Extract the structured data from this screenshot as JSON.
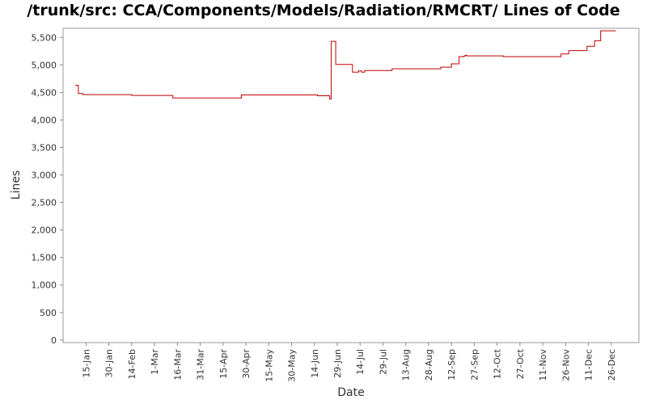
{
  "chart_data": {
    "type": "line",
    "title": "/trunk/src: CCA/Components/Models/Radiation/RMCRT/ Lines of Code",
    "xlabel": "Date",
    "ylabel": "Lines",
    "ylim": [
      0,
      5750
    ],
    "yticks": [
      0,
      500,
      1000,
      1500,
      2000,
      2500,
      3000,
      3500,
      4000,
      4500,
      5000,
      5500
    ],
    "ytick_labels": [
      "0",
      "500",
      "1,000",
      "1,500",
      "2,000",
      "2,500",
      "3,000",
      "3,500",
      "4,000",
      "4,500",
      "5,000",
      "5,500"
    ],
    "xlim_days": [
      0,
      375
    ],
    "xticks": [
      {
        "label": "15-Jan",
        "day": 14
      },
      {
        "label": "30-Jan",
        "day": 29
      },
      {
        "label": "14-Feb",
        "day": 44
      },
      {
        "label": "1-Mar",
        "day": 59
      },
      {
        "label": "16-Mar",
        "day": 74
      },
      {
        "label": "31-Mar",
        "day": 89
      },
      {
        "label": "15-Apr",
        "day": 104
      },
      {
        "label": "30-Apr",
        "day": 119
      },
      {
        "label": "15-May",
        "day": 134
      },
      {
        "label": "30-May",
        "day": 149
      },
      {
        "label": "14-Jun",
        "day": 164
      },
      {
        "label": "29-Jun",
        "day": 179
      },
      {
        "label": "14-Jul",
        "day": 194
      },
      {
        "label": "29-Jul",
        "day": 209
      },
      {
        "label": "13-Aug",
        "day": 224
      },
      {
        "label": "28-Aug",
        "day": 239
      },
      {
        "label": "12-Sep",
        "day": 254
      },
      {
        "label": "27-Sep",
        "day": 269
      },
      {
        "label": "12-Oct",
        "day": 284
      },
      {
        "label": "27-Oct",
        "day": 299
      },
      {
        "label": "11-Nov",
        "day": 314
      },
      {
        "label": "26-Nov",
        "day": 329
      },
      {
        "label": "11-Dec",
        "day": 344
      },
      {
        "label": "26-Dec",
        "day": 359
      }
    ],
    "series": [
      {
        "color": "#c00000",
        "step": true,
        "points": [
          [
            7,
            4630
          ],
          [
            9,
            4480
          ],
          [
            12,
            4460
          ],
          [
            44,
            4445
          ],
          [
            71,
            4400
          ],
          [
            116,
            4455
          ],
          [
            166,
            4440
          ],
          [
            174,
            4380
          ],
          [
            175,
            5430
          ],
          [
            178,
            5010
          ],
          [
            189,
            4870
          ],
          [
            193,
            4890
          ],
          [
            195,
            4870
          ],
          [
            197,
            4900
          ],
          [
            215,
            4930
          ],
          [
            247,
            4960
          ],
          [
            254,
            5020
          ],
          [
            259,
            5150
          ],
          [
            262,
            5160
          ],
          [
            263,
            5175
          ],
          [
            264,
            5165
          ],
          [
            288,
            5150
          ],
          [
            326,
            5200
          ],
          [
            331,
            5260
          ],
          [
            343,
            5340
          ],
          [
            348,
            5440
          ],
          [
            352,
            5620
          ],
          [
            362,
            5620
          ]
        ]
      }
    ],
    "grid": false,
    "legend": "none"
  }
}
